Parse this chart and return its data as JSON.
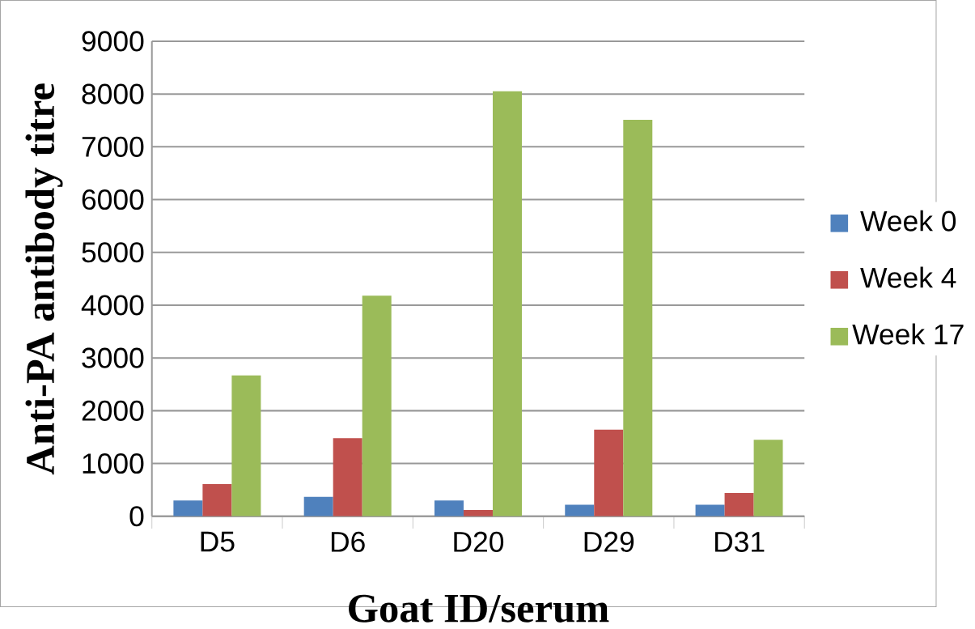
{
  "chart_data": {
    "type": "bar",
    "xlabel": "Goat ID/serum",
    "ylabel": "Anti-PA antibody titre",
    "categories": [
      "D5",
      "D6",
      "D20",
      "D29",
      "D31"
    ],
    "series": [
      {
        "name": "Week 0",
        "color": "#4f81bd",
        "values": [
          300,
          370,
          300,
          220,
          220
        ]
      },
      {
        "name": "Week 4",
        "color": "#c0504d",
        "values": [
          610,
          1480,
          120,
          1640,
          440
        ]
      },
      {
        "name": "Week 17",
        "color": "#9bbb59",
        "values": [
          2670,
          4180,
          8050,
          7510,
          1450
        ]
      }
    ],
    "ylim": [
      0,
      9000
    ],
    "yticks": [
      0,
      1000,
      2000,
      3000,
      4000,
      5000,
      6000,
      7000,
      8000,
      9000
    ],
    "grid": "y",
    "legend": "right"
  }
}
